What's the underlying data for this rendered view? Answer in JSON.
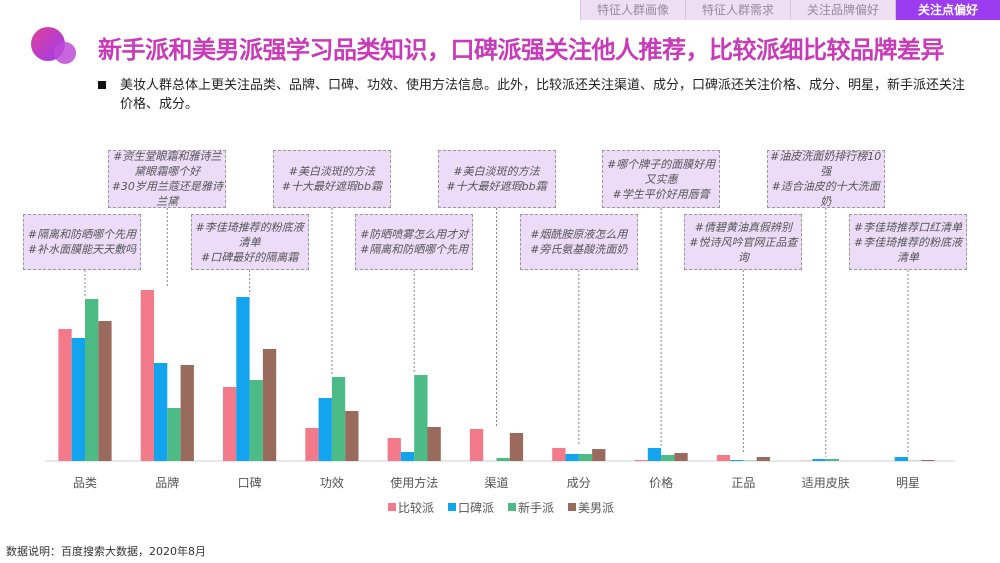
{
  "tabs": [
    "特征人群画像",
    "特征人群需求",
    "关注品牌偏好",
    "关注点偏好"
  ],
  "active_tab": 3,
  "title": "新手派和美男派强学习品类知识，口碑派强关注他人推荐，比较派细比较品牌差异",
  "bullet": "美妆人群总体上更关注品类、品牌、口碑、功效、使用方法信息。此外，比较派还关注渠道、成分，口碑派还关注价格、成分、明星，新手派还关注价格、成分。",
  "annotations": [
    {
      "category": "品类",
      "lines": [
        "#隔离和防晒哪个先用",
        "#补水面膜能天天敷吗"
      ]
    },
    {
      "category": "品牌",
      "lines": [
        "#资生堂眼霜和雅诗兰黛眼霜哪个好",
        "#30岁用兰蔻还是雅诗兰黛"
      ]
    },
    {
      "category": "口碑",
      "lines": [
        "#李佳琦推荐的粉底液清单",
        "#口碑最好的隔离霜"
      ]
    },
    {
      "category": "功效",
      "lines": [
        "#美白淡斑的方法",
        "#十大最好遮瑕bb霜"
      ]
    },
    {
      "category": "使用方法",
      "lines": [
        "#防晒喷雾怎么用才对",
        "#隔离和防晒哪个先用"
      ]
    },
    {
      "category": "渠道",
      "lines": [
        "#美白淡斑的方法",
        "#十大最好遮瑕bb霜"
      ]
    },
    {
      "category": "成分",
      "lines": [
        "#烟酰胺原液怎么用",
        "#旁氏氨基酸洗面奶"
      ]
    },
    {
      "category": "价格",
      "lines": [
        "#哪个牌子的面膜好用又实惠",
        "#学生平价好用唇膏"
      ]
    },
    {
      "category": "正品",
      "lines": [
        "#倩碧黄油真假辨别",
        "#悦诗风吟官网正品查询"
      ]
    },
    {
      "category": "适用皮肤",
      "lines": [
        "#油皮洗面奶排行榜10强",
        "#适合油皮的十大洗面奶"
      ]
    },
    {
      "category": "明星",
      "lines": [
        "#李佳琦推荐口红清单",
        "#李佳琦推荐的粉底液清单"
      ]
    }
  ],
  "chart_data": {
    "type": "bar",
    "title": "",
    "xlabel": "",
    "ylabel": "",
    "y_axis_shown": false,
    "grid": false,
    "legend_position": "bottom",
    "ylim": [
      0,
      180
    ],
    "categories": [
      "品类",
      "品牌",
      "口碑",
      "功效",
      "使用方法",
      "渠道",
      "成分",
      "价格",
      "正品",
      "适用皮肤",
      "明星"
    ],
    "series": [
      {
        "name": "比较派",
        "color": "#f27a8a",
        "values": [
          132,
          171,
          74,
          33,
          23,
          32,
          13,
          1,
          6,
          0.3,
          0
        ]
      },
      {
        "name": "口碑派",
        "color": "#12a4ee",
        "values": [
          123,
          98,
          164,
          63,
          9,
          0,
          7,
          13,
          1,
          2,
          4
        ]
      },
      {
        "name": "新手派",
        "color": "#4dbb86",
        "values": [
          162,
          53,
          81,
          84,
          86,
          3,
          7,
          6,
          0.5,
          2,
          0.3
        ]
      },
      {
        "name": "美男派",
        "color": "#9a6a5c",
        "values": [
          140,
          96,
          112,
          50,
          34,
          28,
          12,
          8,
          4,
          0,
          1
        ]
      }
    ]
  },
  "source": "数据说明：百度搜索大数据，2020年8月"
}
